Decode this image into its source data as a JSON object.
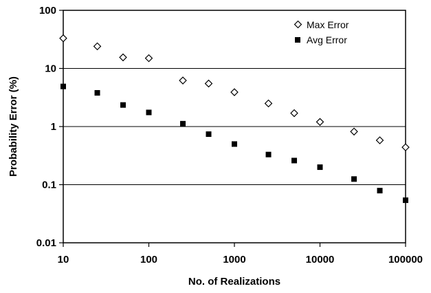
{
  "chart_data": {
    "type": "scatter",
    "xlabel": "No. of Realizations",
    "ylabel": "Probability Error (%)",
    "xscale": "log",
    "yscale": "log",
    "xlim": [
      10,
      100000
    ],
    "ylim": [
      0.01,
      100
    ],
    "xticks": [
      "10",
      "100",
      "1000",
      "10000",
      "100000"
    ],
    "yticks": [
      "0.01",
      "0.1",
      "1",
      "10",
      "100"
    ],
    "grid": "horizontal",
    "legend_position": "top-right",
    "series": [
      {
        "name": "Max Error",
        "marker": "open-diamond",
        "color": "#000000",
        "points": [
          [
            10,
            33
          ],
          [
            25,
            24
          ],
          [
            50,
            15.5
          ],
          [
            100,
            15
          ],
          [
            250,
            6.2
          ],
          [
            500,
            5.5
          ],
          [
            1000,
            3.9
          ],
          [
            2500,
            2.5
          ],
          [
            5000,
            1.7
          ],
          [
            10000,
            1.2
          ],
          [
            25000,
            0.82
          ],
          [
            50000,
            0.58
          ],
          [
            100000,
            0.44
          ]
        ]
      },
      {
        "name": "Avg Error",
        "marker": "filled-square",
        "color": "#000000",
        "points": [
          [
            10,
            4.9
          ],
          [
            25,
            3.8
          ],
          [
            50,
            2.35
          ],
          [
            100,
            1.75
          ],
          [
            250,
            1.12
          ],
          [
            500,
            0.74
          ],
          [
            1000,
            0.5
          ],
          [
            2500,
            0.33
          ],
          [
            5000,
            0.26
          ],
          [
            10000,
            0.2
          ],
          [
            25000,
            0.125
          ],
          [
            50000,
            0.079
          ],
          [
            100000,
            0.054
          ]
        ]
      }
    ]
  }
}
